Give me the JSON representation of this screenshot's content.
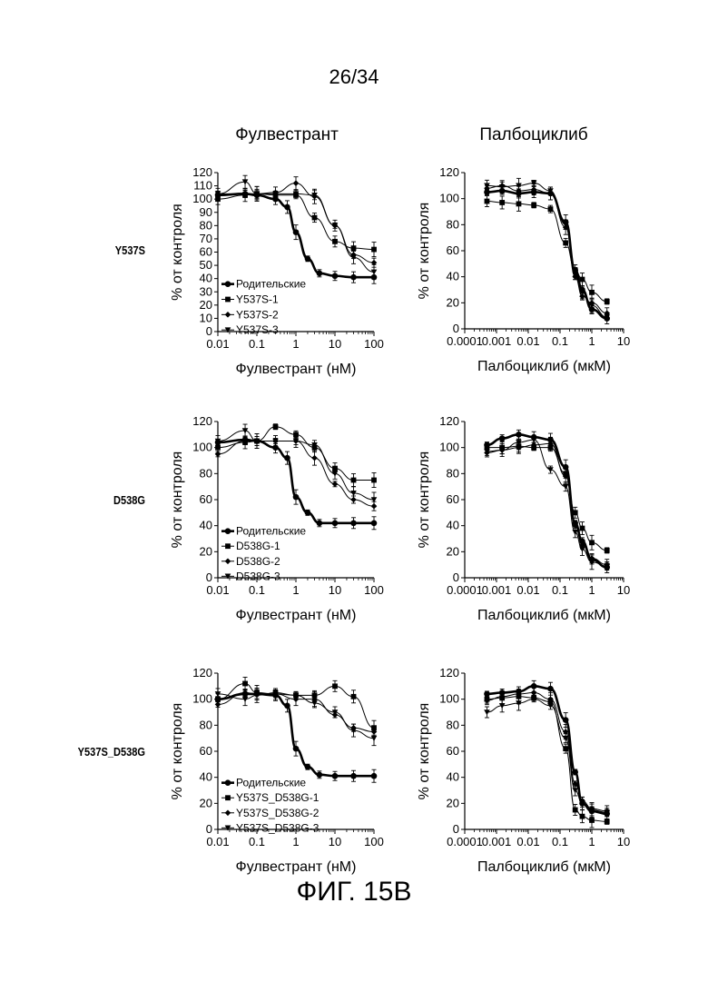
{
  "page_number": "26/34",
  "figure_label": "ФИГ. 15B",
  "column_titles": [
    "Фулвестрант",
    "Палбоциклиб"
  ],
  "row_titles": [
    "Y537S",
    "D538G",
    "Y537S_D538G"
  ],
  "chart_data": [
    {
      "type": "scatter",
      "title": "Фулвестрант",
      "row": "Y537S",
      "xlabel": "Фулвестрант (нМ)",
      "ylabel": "% от контроля",
      "xscale": "log",
      "xlim": [
        0.01,
        100
      ],
      "ylim": [
        0,
        120
      ],
      "xticks": [
        "0.01",
        "0.1",
        "1",
        "10",
        "100"
      ],
      "yticks": [
        "0",
        "10",
        "20",
        "30",
        "40",
        "50",
        "60",
        "70",
        "80",
        "90",
        "100",
        "110",
        "120"
      ],
      "legend_position": "bottom-left",
      "series": [
        {
          "name": "Родительские",
          "marker": "circle",
          "x": [
            0.01,
            0.05,
            0.1,
            0.3,
            0.6,
            1,
            2,
            4,
            10,
            30,
            100
          ],
          "values": [
            103,
            104,
            103,
            100,
            94,
            75,
            55,
            44,
            42,
            41,
            41
          ]
        },
        {
          "name": "Y537S-1",
          "marker": "square",
          "x": [
            0.01,
            0.05,
            0.1,
            0.3,
            1,
            3,
            10,
            30,
            100
          ],
          "values": [
            100,
            103,
            104,
            103,
            103,
            86,
            68,
            63,
            62
          ]
        },
        {
          "name": "Y537S-2",
          "marker": "diamond",
          "x": [
            0.01,
            0.05,
            0.1,
            0.3,
            1,
            3,
            10,
            30,
            100
          ],
          "values": [
            104,
            104,
            104,
            105,
            112,
            102,
            80,
            58,
            52
          ]
        },
        {
          "name": "Y537S-3",
          "marker": "triangle-down",
          "x": [
            0.01,
            0.05,
            0.1,
            0.3,
            1,
            3,
            10,
            30,
            100
          ],
          "values": [
            104,
            113,
            104,
            104,
            104,
            103,
            80,
            56,
            45
          ]
        }
      ]
    },
    {
      "type": "scatter",
      "title": "Палбоциклиб",
      "row": "Y537S",
      "xlabel": "Палбоциклиб (мкМ)",
      "ylabel": "% от контроля",
      "xscale": "log",
      "xlim": [
        0.0001,
        10
      ],
      "ylim": [
        0,
        120
      ],
      "xticks": [
        "0.0001",
        "0.001",
        "0.01",
        "0.1",
        "1",
        "10"
      ],
      "yticks": [
        "0",
        "20",
        "40",
        "60",
        "80",
        "100",
        "120"
      ],
      "series": [
        {
          "name": "Родительские",
          "marker": "circle",
          "x": [
            0.0005,
            0.0015,
            0.005,
            0.015,
            0.05,
            0.15,
            0.3,
            0.5,
            1,
            3
          ],
          "values": [
            105,
            106,
            104,
            105,
            104,
            82,
            45,
            30,
            15,
            8
          ]
        },
        {
          "name": "Y537S-1",
          "marker": "square",
          "x": [
            0.0005,
            0.0015,
            0.005,
            0.015,
            0.05,
            0.15,
            0.3,
            0.5,
            1,
            3
          ],
          "values": [
            98,
            97,
            96,
            95,
            92,
            66,
            45,
            38,
            28,
            21
          ]
        },
        {
          "name": "Y537S-2",
          "marker": "diamond",
          "x": [
            0.0005,
            0.0015,
            0.005,
            0.015,
            0.05,
            0.15,
            0.3,
            0.5,
            1,
            3
          ],
          "values": [
            108,
            110,
            106,
            107,
            104,
            78,
            40,
            25,
            20,
            12
          ]
        },
        {
          "name": "Y537S-3",
          "marker": "triangle-down",
          "x": [
            0.0005,
            0.0015,
            0.005,
            0.015,
            0.05,
            0.15,
            0.3,
            0.5,
            1,
            3
          ],
          "values": [
            110,
            109,
            110,
            112,
            106,
            80,
            42,
            28,
            18,
            9
          ]
        }
      ]
    },
    {
      "type": "scatter",
      "title": "Фулвестрант",
      "row": "D538G",
      "xlabel": "Фулвестрант (нМ)",
      "ylabel": "% от контроля",
      "xscale": "log",
      "xlim": [
        0.01,
        100
      ],
      "ylim": [
        0,
        120
      ],
      "xticks": [
        "0.01",
        "0.1",
        "1",
        "10",
        "100"
      ],
      "yticks": [
        "0",
        "20",
        "40",
        "60",
        "80",
        "100",
        "120"
      ],
      "legend_position": "bottom-left",
      "series": [
        {
          "name": "Родительские",
          "marker": "circle",
          "x": [
            0.01,
            0.05,
            0.1,
            0.3,
            0.6,
            1,
            2,
            4,
            10,
            30,
            100
          ],
          "values": [
            104,
            106,
            105,
            100,
            92,
            62,
            50,
            42,
            42,
            42,
            42
          ]
        },
        {
          "name": "D538G-1",
          "marker": "square",
          "x": [
            0.01,
            0.05,
            0.1,
            0.3,
            1,
            3,
            10,
            30,
            100
          ],
          "values": [
            100,
            104,
            105,
            116,
            110,
            100,
            84,
            75,
            75
          ]
        },
        {
          "name": "D538G-2",
          "marker": "diamond",
          "x": [
            0.01,
            0.05,
            0.1,
            0.3,
            1,
            3,
            10,
            30,
            100
          ],
          "values": [
            95,
            105,
            105,
            105,
            105,
            92,
            72,
            60,
            55
          ]
        },
        {
          "name": "D538G-3",
          "marker": "triangle-down",
          "x": [
            0.01,
            0.05,
            0.1,
            0.3,
            1,
            3,
            10,
            30,
            100
          ],
          "values": [
            105,
            113,
            105,
            105,
            105,
            102,
            80,
            65,
            60
          ]
        }
      ]
    },
    {
      "type": "scatter",
      "title": "Палбоциклиб",
      "row": "D538G",
      "xlabel": "Палбоциклиб (мкМ)",
      "ylabel": "% от контроля",
      "xscale": "log",
      "xlim": [
        0.0001,
        10
      ],
      "ylim": [
        0,
        120
      ],
      "xticks": [
        "0.0001",
        "0.001",
        "0.01",
        "0.1",
        "1",
        "10"
      ],
      "yticks": [
        "0",
        "20",
        "40",
        "60",
        "80",
        "100",
        "120"
      ],
      "series": [
        {
          "name": "Родительские",
          "marker": "circle",
          "x": [
            0.0005,
            0.0015,
            0.005,
            0.015,
            0.05,
            0.15,
            0.3,
            0.5,
            1,
            3
          ],
          "values": [
            102,
            107,
            110,
            108,
            106,
            85,
            42,
            28,
            14,
            8
          ]
        },
        {
          "name": "D538G-1",
          "marker": "square",
          "x": [
            0.0005,
            0.0015,
            0.005,
            0.015,
            0.05,
            0.15,
            0.3,
            0.5,
            1,
            3
          ],
          "values": [
            100,
            100,
            101,
            100,
            100,
            80,
            50,
            38,
            27,
            21
          ]
        },
        {
          "name": "D538G-2",
          "marker": "diamond",
          "x": [
            0.0005,
            0.0015,
            0.005,
            0.015,
            0.05,
            0.15,
            0.3,
            0.5,
            1,
            3
          ],
          "values": [
            96,
            98,
            100,
            102,
            103,
            78,
            40,
            25,
            15,
            10
          ]
        },
        {
          "name": "D538G-3",
          "marker": "triangle-down",
          "x": [
            0.0005,
            0.0015,
            0.005,
            0.015,
            0.05,
            0.15,
            0.3,
            0.5,
            1,
            3
          ],
          "values": [
            97,
            98,
            104,
            106,
            83,
            70,
            35,
            22,
            12,
            9
          ]
        }
      ]
    },
    {
      "type": "scatter",
      "title": "Фулвестрант",
      "row": "Y537S_D538G",
      "xlabel": "Фулвестрант (нМ)",
      "ylabel": "% от контроля",
      "xscale": "log",
      "xlim": [
        0.01,
        100
      ],
      "ylim": [
        0,
        120
      ],
      "xticks": [
        "0.01",
        "0.1",
        "1",
        "10",
        "100"
      ],
      "yticks": [
        "0",
        "20",
        "40",
        "60",
        "80",
        "100",
        "120"
      ],
      "legend_position": "bottom-left",
      "series": [
        {
          "name": "Родительские",
          "marker": "circle",
          "x": [
            0.01,
            0.05,
            0.1,
            0.3,
            0.6,
            1,
            2,
            4,
            10,
            30,
            100
          ],
          "values": [
            100,
            104,
            104,
            103,
            95,
            62,
            48,
            42,
            41,
            41,
            41
          ]
        },
        {
          "name": "Y537S_D538G-1",
          "marker": "square",
          "x": [
            0.01,
            0.05,
            0.1,
            0.3,
            1,
            3,
            10,
            30,
            100
          ],
          "values": [
            100,
            112,
            105,
            104,
            103,
            103,
            110,
            102,
            78
          ]
        },
        {
          "name": "Y537S_D538G-2",
          "marker": "diamond",
          "x": [
            0.01,
            0.05,
            0.1,
            0.3,
            1,
            3,
            10,
            30,
            100
          ],
          "values": [
            96,
            105,
            104,
            104,
            100,
            100,
            88,
            78,
            75
          ]
        },
        {
          "name": "Y537S_D538G-3",
          "marker": "triangle-down",
          "x": [
            0.01,
            0.05,
            0.1,
            0.3,
            1,
            3,
            10,
            30,
            100
          ],
          "values": [
            104,
            100,
            103,
            105,
            103,
            97,
            90,
            76,
            70
          ]
        }
      ]
    },
    {
      "type": "scatter",
      "title": "Палбоциклиб",
      "row": "Y537S_D538G",
      "xlabel": "Палбоциклиб (мкМ)",
      "ylabel": "% от контроля",
      "xscale": "log",
      "xlim": [
        0.0001,
        10
      ],
      "ylim": [
        0,
        120
      ],
      "xticks": [
        "0.0001",
        "0.001",
        "0.01",
        "0.1",
        "1",
        "10"
      ],
      "yticks": [
        "0",
        "20",
        "40",
        "60",
        "80",
        "100",
        "120"
      ],
      "series": [
        {
          "name": "Родительские",
          "marker": "circle",
          "x": [
            0.0005,
            0.0015,
            0.005,
            0.015,
            0.05,
            0.15,
            0.3,
            0.5,
            1,
            3
          ],
          "values": [
            104,
            105,
            106,
            110,
            108,
            84,
            44,
            20,
            14,
            12
          ]
        },
        {
          "name": "Y537S_D538G-1",
          "marker": "square",
          "x": [
            0.0005,
            0.0015,
            0.005,
            0.015,
            0.05,
            0.15,
            0.3,
            0.5,
            1,
            3
          ],
          "values": [
            100,
            101,
            102,
            101,
            98,
            62,
            15,
            10,
            7,
            6
          ]
        },
        {
          "name": "Y537S_D538G-2",
          "marker": "diamond",
          "x": [
            0.0005,
            0.0015,
            0.005,
            0.015,
            0.05,
            0.15,
            0.3,
            0.5,
            1,
            3
          ],
          "values": [
            99,
            102,
            104,
            105,
            100,
            75,
            35,
            22,
            16,
            14
          ]
        },
        {
          "name": "Y537S_D538G-3",
          "marker": "triangle-down",
          "x": [
            0.0005,
            0.0015,
            0.005,
            0.015,
            0.05,
            0.15,
            0.3,
            0.5,
            1,
            3
          ],
          "values": [
            90,
            95,
            97,
            100,
            95,
            70,
            30,
            20,
            15,
            13
          ]
        }
      ]
    }
  ]
}
